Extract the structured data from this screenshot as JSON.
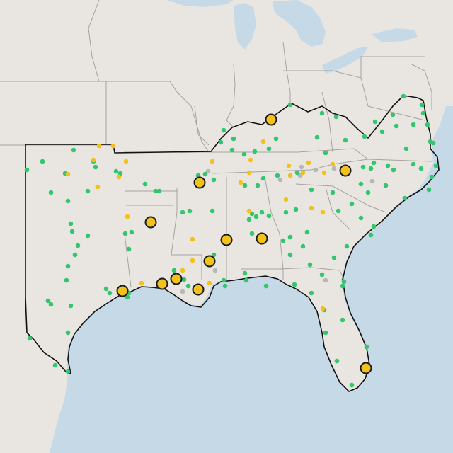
{
  "map": {
    "colors": {
      "land": "#e9e6e2",
      "water": "#c6d9e6",
      "state_border": "#a6a2a0",
      "region_outline": "#111111",
      "site_green": "#34c66e",
      "site_yellow": "#f2c21b",
      "site_gray": "#b5b8ba",
      "major_fill": "#f2c21b",
      "major_stroke": "#1a1a1a"
    },
    "layers": [
      {
        "name": "basemap"
      },
      {
        "name": "state-borders"
      },
      {
        "name": "region-outline"
      },
      {
        "name": "monitoring-sites",
        "status_categories": [
          "green",
          "yellow",
          "gray"
        ]
      },
      {
        "name": "major-sites"
      }
    ]
  }
}
